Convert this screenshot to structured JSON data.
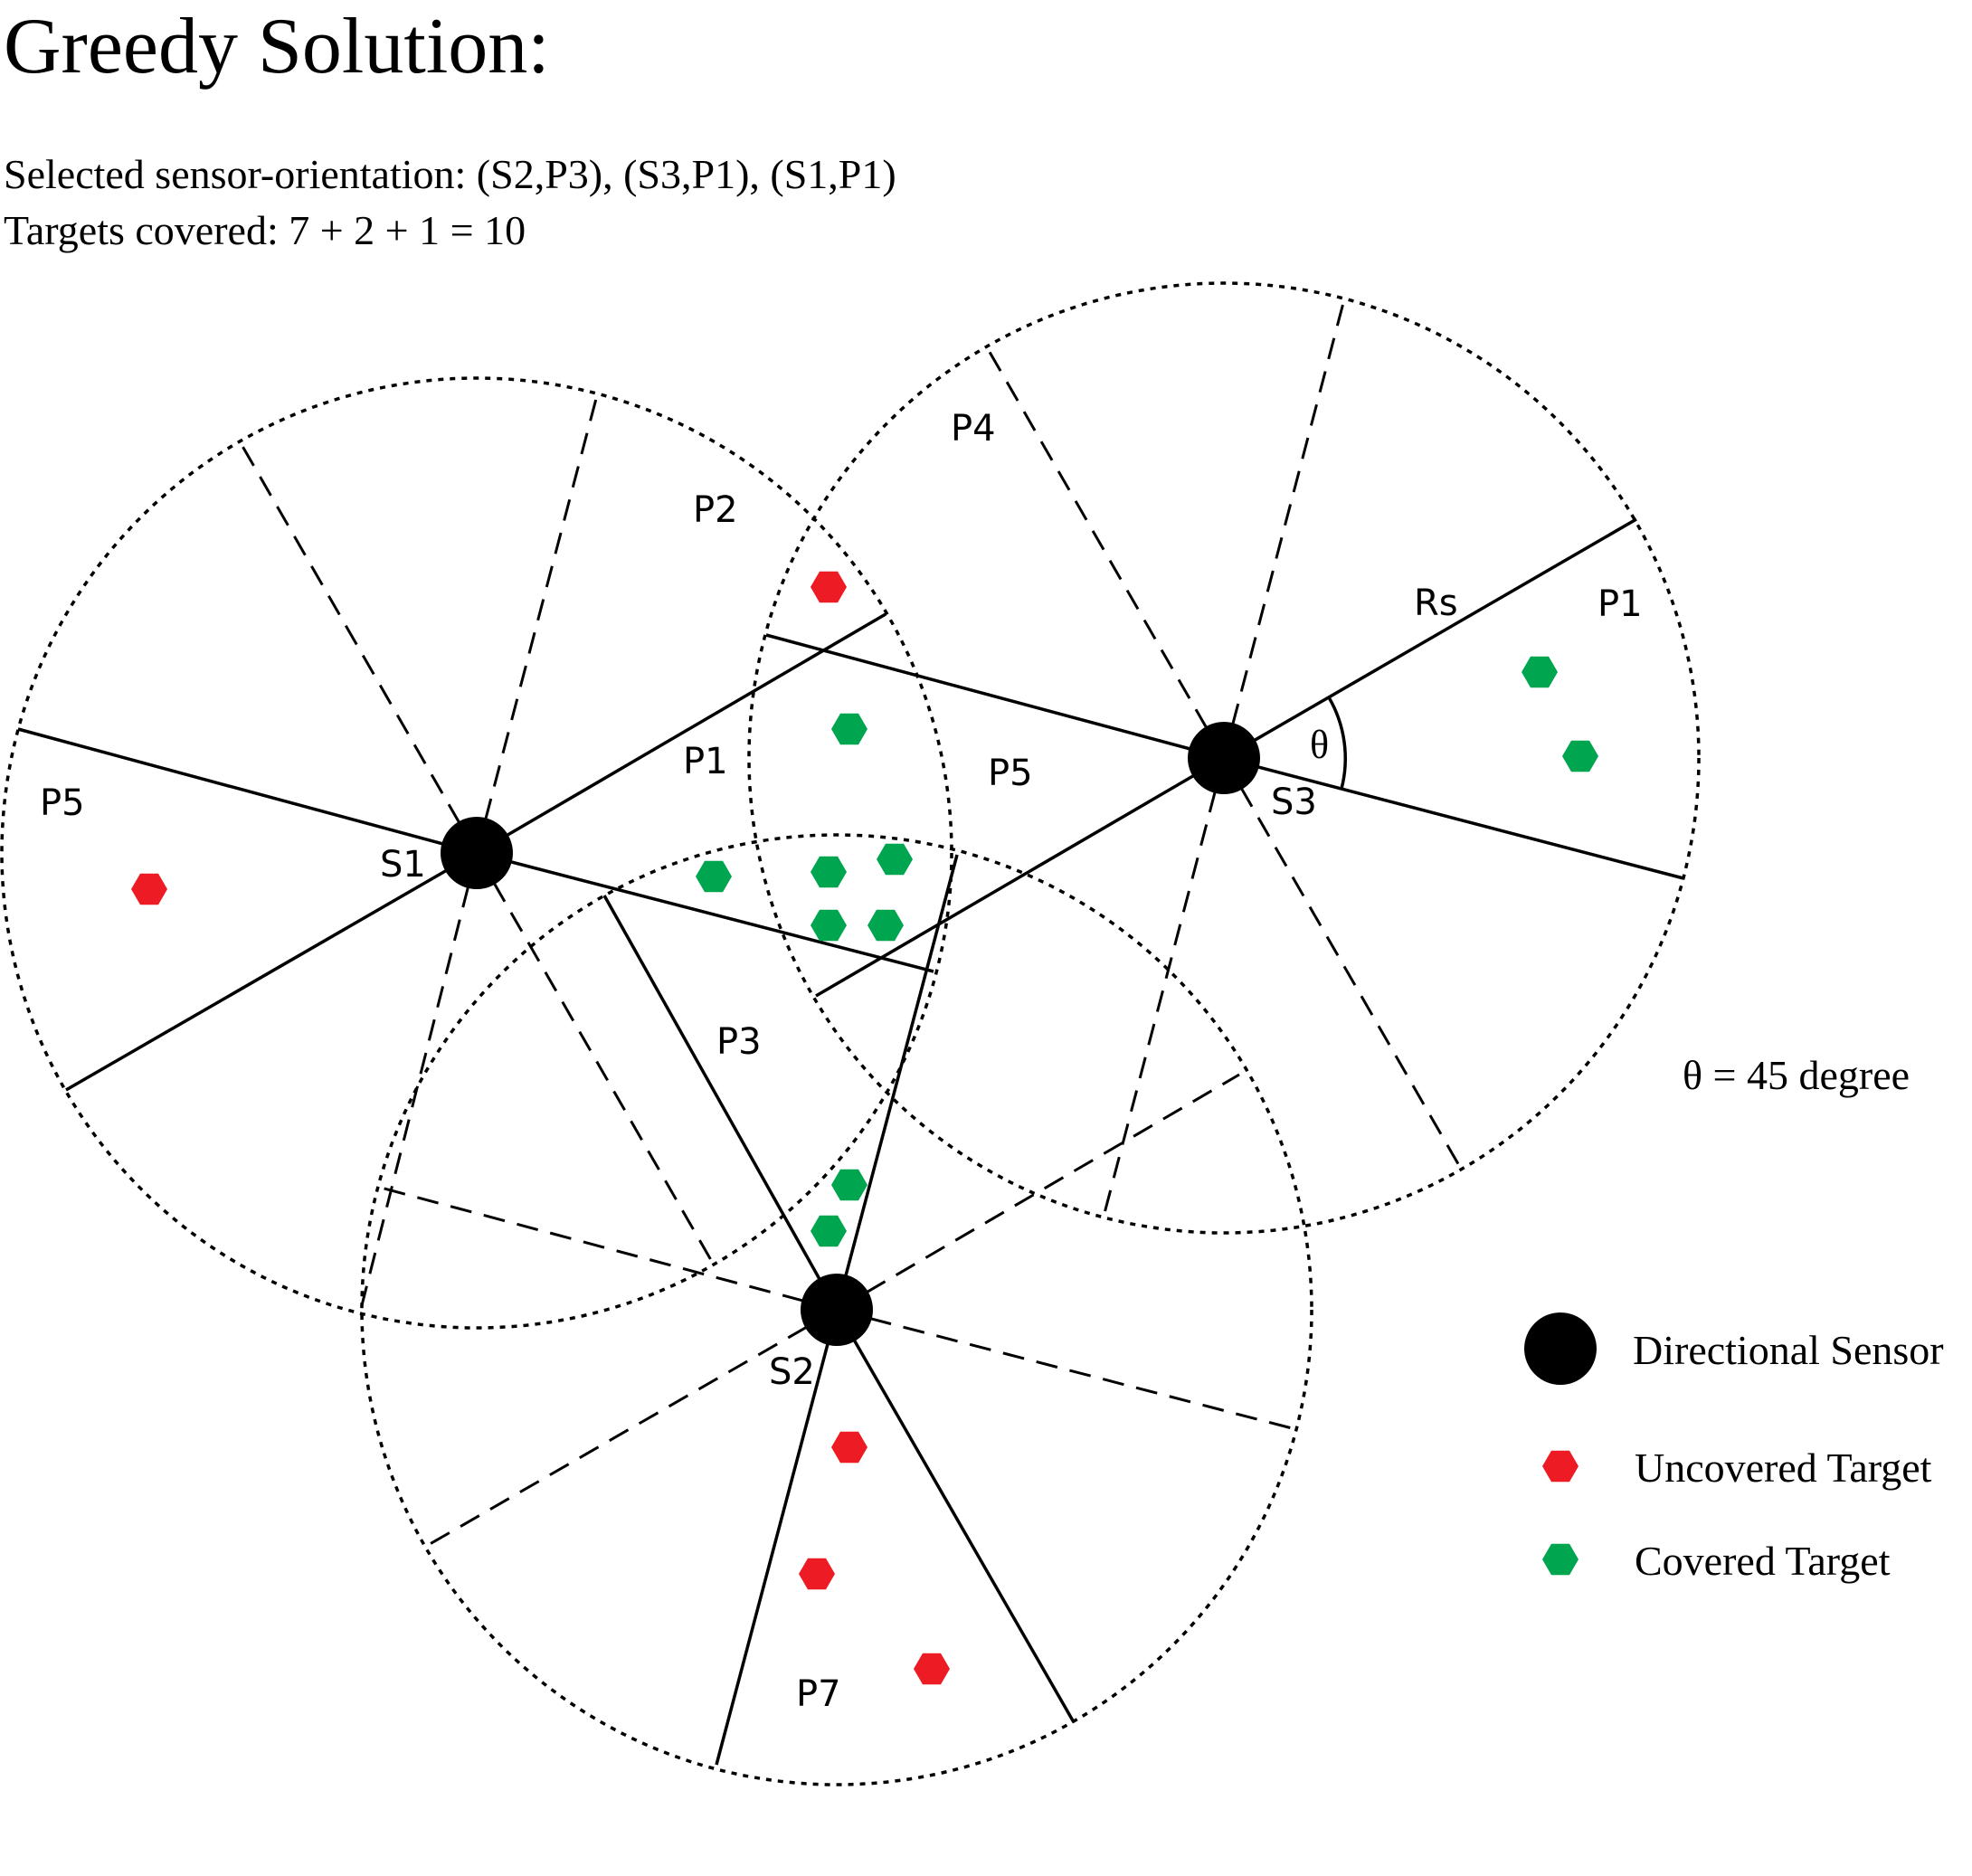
{
  "title": "Greedy Solution:",
  "summary": {
    "selected": "Selected sensor-orientation: (S2,P3), (S3,P1), (S1,P1)",
    "targets": "Targets covered: 7 + 2 + 1 = 10"
  },
  "theta_note": "θ = 45 degree",
  "sensors": [
    {
      "label": "S1"
    },
    {
      "label": "S2"
    },
    {
      "label": "S3"
    }
  ],
  "sector_labels": {
    "s1": [
      "P5",
      "P2",
      "P1"
    ],
    "s2": [
      "P3",
      "P7"
    ],
    "s3": [
      "P4",
      "P5",
      "P1"
    ],
    "rs": "Rs",
    "theta": "θ"
  },
  "legend": {
    "sensor": "Directional Sensor",
    "uncovered": "Uncovered Target",
    "covered": "Covered Target"
  },
  "colors": {
    "covered": "#00a550",
    "uncovered": "#ed1c24",
    "sensor": "#000000"
  },
  "targets": {
    "covered_count": 10,
    "uncovered_count": 5
  }
}
